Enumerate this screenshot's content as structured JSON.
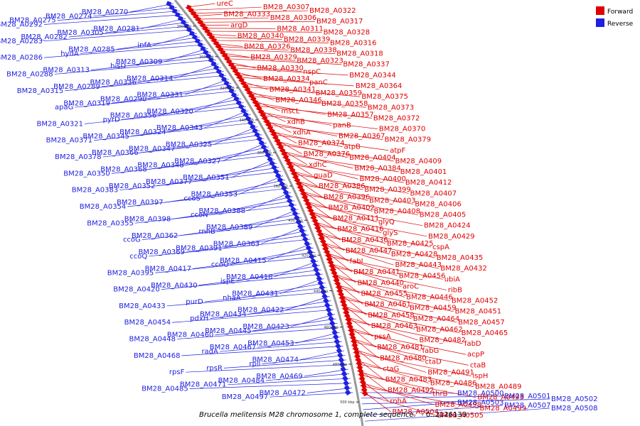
{
  "title": "Brucella melitensis M28 chromosome 1, complete sequence.",
  "range": "- 0..2126133",
  "colors": {
    "forward": "#e00000",
    "reverse": "#2020e0",
    "axis": "#999999"
  },
  "legend": [
    {
      "label": "Forward",
      "color": "#e00000"
    },
    {
      "label": "Reverse",
      "color": "#2020e0"
    }
  ],
  "ticks": [
    "280 kbp",
    "300 kbp",
    "320 kbp",
    "340 kbp",
    "360 kbp",
    "380 kbp",
    "400 kbp",
    "420 kbp",
    "440 kbp",
    "460 kbp",
    "480 kbp",
    "500 kbp"
  ],
  "forward_genes": [
    "ureC",
    "BM28_A0307",
    "BM28_A0322",
    "BM28_A0333",
    "BM28_A0306",
    "BM28_A0317",
    "argD",
    "BM28_A0311",
    "BM28_A0328",
    "BM28_A0340",
    "BM28_A0339",
    "BM28_A0316",
    "BM28_A0326",
    "BM28_A0338",
    "BM28_A0318",
    "BM28_A0329",
    "BM28_A0323",
    "BM28_A0337",
    "BM28_A0330",
    "nspC",
    "BM28_A0344",
    "BM28_A0334",
    "panC",
    "BM28_A0364",
    "BM28_A0341",
    "BM28_A0359",
    "BM28_A0375",
    "BM28_A0346",
    "BM28_A0358",
    "BM28_A0373",
    "mscL",
    "BM28_A0357",
    "BM28_A0372",
    "xdhB",
    "panB",
    "BM28_A0370",
    "xdhA",
    "BM28_A0367",
    "BM28_A0379",
    "BM28_A0374",
    "atpB",
    "atpF",
    "BM28_A0376",
    "BM28_A0404",
    "BM28_A0409",
    "xdhC",
    "BM28_A0384",
    "BM28_A0401",
    "guaD",
    "BM28_A0400",
    "BM28_A0412",
    "BM28_A0386",
    "BM28_A0399",
    "BM28_A0407",
    "BM28_A0396",
    "BM28_A0403",
    "BM28_A0406",
    "BM28_A0402",
    "BM28_A0408",
    "BM28_A0405",
    "BM28_A0411",
    "glyQ",
    "BM28_A0424",
    "BM28_A0416",
    "glyS",
    "BM28_A0429",
    "BM28_A0436",
    "BM28_A0425",
    "cspA",
    "BM28_A0447",
    "BM28_A0428",
    "BM28_A0435",
    "fabI",
    "BM28_A0443",
    "BM28_A0432",
    "BM28_A0441",
    "BM28_A0456",
    "ubiA",
    "BM28_A0440",
    "aroC",
    "ribB",
    "BM28_A0455",
    "BM28_A0446",
    "BM28_A0452",
    "BM28_A0461",
    "BM28_A0459",
    "BM28_A0451",
    "BM28_A0458",
    "BM28_A0464",
    "BM28_A0457",
    "BM28_A0463",
    "BM28_A0462",
    "BM28_A0465",
    "pssA",
    "BM28_A0482",
    "fabD",
    "BM28_A0481",
    "fabG",
    "acpP",
    "BM28_A0480",
    "ctaD",
    "ctaB",
    "ctaG",
    "BM28_A0491",
    "ispH",
    "BM28_A0483",
    "BM28_A0486",
    "BM28_A0489",
    "BM28_A0492",
    "thrB",
    "BM28_A0493",
    "rnhA",
    "BM28_A0498",
    "BM28_A0499",
    "BM28_A0504",
    "BM28_A0505"
  ],
  "reverse_genes_right": [
    "BM28_A0500",
    "BM28_A0501",
    "BM28_A0502",
    "BM28_A0503",
    "BM28_A0507",
    "BM28_A0508"
  ],
  "reverse_genes_left": [
    "BM28_A0270",
    "BM28_A0274",
    "BM28_A0275",
    "BM28_A0292",
    "BM28_A0281",
    "BM28_A0305",
    "BM28_A0282",
    "BM28_A0283",
    "infA",
    "BM28_A0285",
    "hydA",
    "BM28_A0286",
    "BM28_A0309",
    "hisD",
    "BM28_A0313",
    "BM28_A0288",
    "BM28_A0314",
    "BM28_A0336",
    "BM28_A0289",
    "BM28_A0315",
    "BM28_A0331",
    "BM28_A0290",
    "BM28_A0319",
    "apaG",
    "BM28_A0320",
    "BM28_A0356",
    "pyrD",
    "BM28_A0321",
    "BM28_A0343",
    "BM28_A0324",
    "BM28_A0345",
    "BM28_A0371",
    "BM28_A0325",
    "BM28_A0347",
    "BM28_A0366",
    "BM28_A0378",
    "BM28_A0327",
    "BM28_A0348",
    "BM28_A0368",
    "BM28_A0350",
    "BM28_A0351",
    "BM28_A0377",
    "BM28_A0352",
    "BM28_A0383",
    "BM28_A0353",
    "ccoS",
    "BM28_A0397",
    "BM28_A0354",
    "BM28_A0388",
    "ccoN",
    "BM28_A0398",
    "BM28_A0355",
    "BM28_A0389",
    "rnhB",
    "BM28_A0362",
    "ccoG",
    "BM28_A0363",
    "BM28_A0391",
    "BM28_A0369",
    "ccoQ",
    "BM28_A0415",
    "ccoO",
    "BM28_A0417",
    "BM28_A0395",
    "BM28_A0418",
    "ispE",
    "BM28_A0430",
    "BM28_A0420",
    "BM28_A0431",
    "nhaA",
    "purD",
    "BM28_A0433",
    "BM28_A0422",
    "BM28_A0434",
    "pdxH",
    "BM28_A0454",
    "BM28_A0423",
    "BM28_A0445",
    "BM28_A0460",
    "BM28_A0448",
    "BM28_A0453",
    "BM28_A0467",
    "radA",
    "BM28_A0468",
    "BM28_A0474",
    "rpll",
    "rpsR",
    "rpsF",
    "BM28_A0469",
    "BM28_A0484",
    "BM28_A0471",
    "BM28_A0485",
    "BM28_A0472",
    "BM28_A0497"
  ]
}
